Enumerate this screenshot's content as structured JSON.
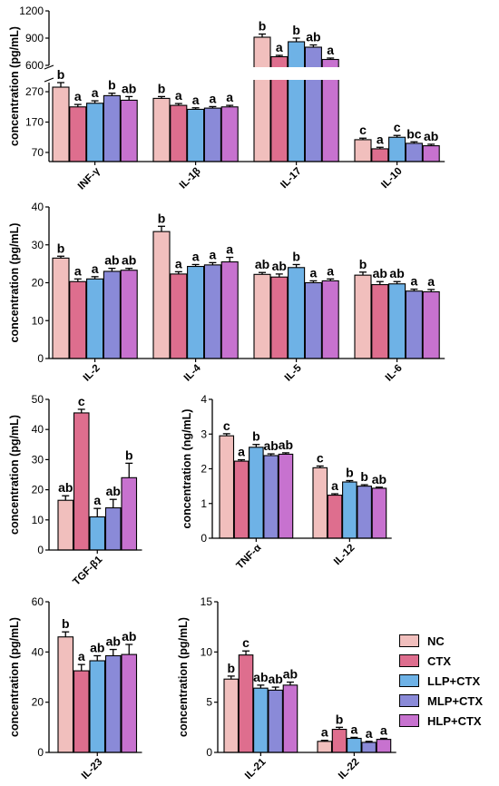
{
  "groups": [
    {
      "name": "NC",
      "color": "#f1bfbd"
    },
    {
      "name": "CTX",
      "color": "#de6e8e"
    },
    {
      "name": "LLP+CTX",
      "color": "#6eb2e6"
    },
    {
      "name": "MLP+CTX",
      "color": "#8a8ad8"
    },
    {
      "name": "HLP+CTX",
      "color": "#c772cf"
    }
  ],
  "chart_data": [
    {
      "type": "bar",
      "ylabel": "concentration (pg/mL)",
      "y_axis_break": true,
      "yticks_lower": [
        70,
        170,
        270
      ],
      "yticks_upper": [
        600,
        900,
        1200
      ],
      "categories": [
        "INF-γ",
        "IL-1β",
        "IL-17",
        "IL-10"
      ],
      "values": [
        [
          285,
          220,
          232,
          257,
          242
        ],
        [
          248,
          225,
          212,
          216,
          220
        ],
        [
          910,
          695,
          860,
          800,
          665
        ],
        [
          112,
          82,
          120,
          100,
          92
        ]
      ],
      "errors": [
        [
          15,
          8,
          8,
          8,
          12
        ],
        [
          6,
          6,
          5,
          5,
          5
        ],
        [
          35,
          15,
          40,
          25,
          15
        ],
        [
          5,
          5,
          6,
          5,
          5
        ]
      ],
      "letters": [
        [
          "b",
          "a",
          "a",
          "b",
          "ab"
        ],
        [
          "b",
          "a",
          "a",
          "a",
          "a"
        ],
        [
          "b",
          "a",
          "b",
          "ab",
          "a"
        ],
        [
          "c",
          "a",
          "c",
          "bc",
          "ab"
        ]
      ]
    },
    {
      "type": "bar",
      "ylabel": "concentration (pg/mL)",
      "ylim": [
        0,
        40
      ],
      "yticks": [
        0,
        10,
        20,
        30,
        40
      ],
      "categories": [
        "IL-2",
        "IL-4",
        "IL-5",
        "IL-6"
      ],
      "values": [
        [
          26.5,
          20.3,
          21.0,
          23.0,
          23.3
        ],
        [
          33.5,
          22.3,
          24.3,
          24.7,
          25.5
        ],
        [
          22.2,
          21.5,
          24.0,
          20.0,
          20.5
        ],
        [
          22.0,
          19.5,
          19.7,
          17.8,
          17.6
        ]
      ],
      "errors": [
        [
          0.5,
          0.7,
          0.6,
          0.8,
          0.5
        ],
        [
          1.4,
          0.6,
          0.5,
          0.6,
          1.2
        ],
        [
          0.5,
          0.8,
          0.8,
          0.5,
          0.5
        ],
        [
          0.8,
          0.8,
          0.6,
          0.5,
          0.6
        ]
      ],
      "letters": [
        [
          "b",
          "a",
          "a",
          "ab",
          "ab"
        ],
        [
          "b",
          "a",
          "a",
          "a",
          "a"
        ],
        [
          "ab",
          "ab",
          "b",
          "a",
          "a"
        ],
        [
          "b",
          "ab",
          "ab",
          "a",
          "a"
        ]
      ]
    },
    {
      "type": "bar",
      "ylabel": "concentration (pg/mL)",
      "ylim": [
        0,
        50
      ],
      "yticks": [
        0,
        10,
        20,
        30,
        40,
        50
      ],
      "categories": [
        "TGF-β1"
      ],
      "values": [
        [
          16.5,
          45.5,
          11.0,
          14.0,
          24.0
        ]
      ],
      "errors": [
        [
          1.5,
          1.2,
          2.8,
          2.8,
          4.8
        ]
      ],
      "letters": [
        [
          "ab",
          "c",
          "a",
          "ab",
          "b"
        ]
      ]
    },
    {
      "type": "bar",
      "ylabel": "concentration (ng/mL)",
      "ylim": [
        0,
        4
      ],
      "yticks": [
        0,
        1,
        2,
        3,
        4
      ],
      "categories": [
        "TNF-α",
        "IL-12"
      ],
      "values": [
        [
          2.95,
          2.22,
          2.62,
          2.38,
          2.42
        ],
        [
          2.03,
          1.24,
          1.62,
          1.5,
          1.44
        ]
      ],
      "errors": [
        [
          0.06,
          0.04,
          0.08,
          0.05,
          0.04
        ],
        [
          0.05,
          0.04,
          0.04,
          0.04,
          0.03
        ]
      ],
      "letters": [
        [
          "c",
          "a",
          "b",
          "ab",
          "ab"
        ],
        [
          "c",
          "a",
          "b",
          "b",
          "ab"
        ]
      ]
    },
    {
      "type": "bar",
      "ylabel": "concentration (pg/mL)",
      "ylim": [
        0,
        60
      ],
      "yticks": [
        0,
        20,
        40,
        60
      ],
      "categories": [
        "IL-23"
      ],
      "values": [
        [
          46.0,
          32.5,
          36.5,
          38.5,
          39.0
        ]
      ],
      "errors": [
        [
          2.0,
          2.5,
          2.0,
          2.5,
          4.0
        ]
      ],
      "letters": [
        [
          "b",
          "a",
          "ab",
          "ab",
          "ab"
        ]
      ]
    },
    {
      "type": "bar",
      "ylabel": "concentration (pg/mL)",
      "ylim": [
        0,
        15
      ],
      "yticks": [
        0,
        5,
        10,
        15
      ],
      "categories": [
        "IL-21",
        "IL-22"
      ],
      "values": [
        [
          7.3,
          9.7,
          6.4,
          6.2,
          6.7
        ],
        [
          1.1,
          2.3,
          1.4,
          1.0,
          1.3
        ]
      ],
      "errors": [
        [
          0.3,
          0.4,
          0.3,
          0.3,
          0.3
        ],
        [
          0.1,
          0.2,
          0.1,
          0.1,
          0.1
        ]
      ],
      "letters": [
        [
          "b",
          "c",
          "ab",
          "ab",
          "ab"
        ],
        [
          "a",
          "b",
          "a",
          "a",
          "a"
        ]
      ]
    }
  ]
}
